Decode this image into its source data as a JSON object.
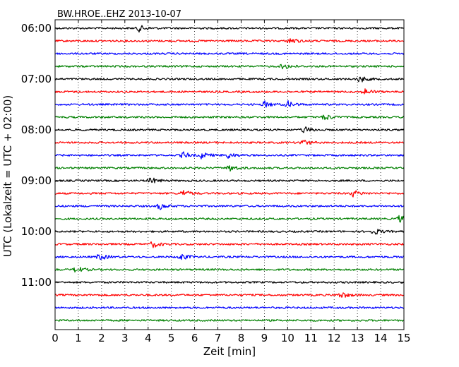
{
  "chart_data": {
    "type": "line",
    "title": "BW.HROE..EHZ 2013-10-07",
    "xlabel": "Zeit  [min]",
    "ylabel": "UTC (Lokalzeit = UTC + 02:00)",
    "xlim": [
      0,
      15
    ],
    "x_ticks": [
      "0",
      "1",
      "2",
      "3",
      "4",
      "5",
      "6",
      "7",
      "8",
      "9",
      "10",
      "11",
      "12",
      "13",
      "14",
      "15"
    ],
    "y_ticks": [
      "06:00",
      "07:00",
      "08:00",
      "09:00",
      "10:00",
      "11:00"
    ],
    "grid": true,
    "trace_interval_min": 15,
    "colors": [
      "#000000",
      "#ff0000",
      "#0000ff",
      "#008000"
    ],
    "series": [
      {
        "start": "06:00",
        "events": [
          3.6
        ]
      },
      {
        "start": "06:15",
        "events": [
          10.1
        ]
      },
      {
        "start": "06:30",
        "events": []
      },
      {
        "start": "06:45",
        "events": [
          9.8
        ]
      },
      {
        "start": "07:00",
        "events": [
          13.1
        ]
      },
      {
        "start": "07:15",
        "events": [
          13.3
        ]
      },
      {
        "start": "07:30",
        "events": [
          9.0,
          10.0
        ]
      },
      {
        "start": "07:45",
        "events": [
          11.6
        ]
      },
      {
        "start": "08:00",
        "events": [
          10.7
        ]
      },
      {
        "start": "08:15",
        "events": [
          10.6
        ]
      },
      {
        "start": "08:30",
        "events": [
          5.5,
          6.3,
          7.4
        ]
      },
      {
        "start": "08:45",
        "events": [
          7.5
        ]
      },
      {
        "start": "09:00",
        "events": [
          4.1
        ]
      },
      {
        "start": "09:15",
        "events": [
          5.5,
          12.8
        ]
      },
      {
        "start": "09:30",
        "events": [
          4.5
        ]
      },
      {
        "start": "09:45",
        "events": [
          14.8
        ]
      },
      {
        "start": "10:00",
        "events": [
          13.7
        ]
      },
      {
        "start": "10:15",
        "events": [
          4.2
        ]
      },
      {
        "start": "10:30",
        "events": [
          1.9,
          5.4
        ]
      },
      {
        "start": "10:45",
        "events": [
          0.9
        ]
      },
      {
        "start": "11:00",
        "events": []
      },
      {
        "start": "11:15",
        "events": [
          12.3
        ]
      },
      {
        "start": "11:30",
        "events": []
      },
      {
        "start": "11:45",
        "events": []
      }
    ]
  }
}
